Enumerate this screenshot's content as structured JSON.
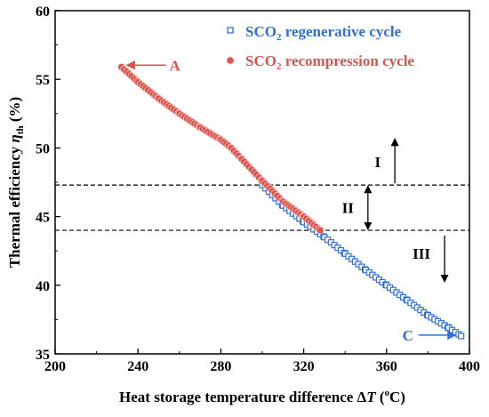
{
  "chart_data": {
    "type": "scatter",
    "xlabel_main": "Heat storage temperature difference Δ",
    "xlabel_var": "T",
    "xlabel_unit_open": " (",
    "xlabel_unit_sup": "o",
    "xlabel_unit_close": "C)",
    "ylabel_main": "Thermal efficiency ",
    "ylabel_var": "η",
    "ylabel_sub": "th",
    "ylabel_unit": " (%)",
    "xlim": [
      200,
      400
    ],
    "ylim": [
      35,
      60
    ],
    "xticks": [
      "200",
      "240",
      "280",
      "320",
      "360",
      "400"
    ],
    "yticks": [
      "35",
      "40",
      "45",
      "50",
      "55",
      "60"
    ],
    "legend_position": "top-right",
    "series": [
      {
        "name": "SCO2 regenerative cycle",
        "name_pre": "SCO",
        "name_sub": "2",
        "name_post": " regenerative cycle",
        "marker": "open-square",
        "color": "#2f6fd6",
        "x": [
          300,
          310,
          320,
          330,
          340,
          350,
          360,
          370,
          380,
          390,
          396
        ],
        "y": [
          47.3,
          45.8,
          44.6,
          43.5,
          42.3,
          41.1,
          40.0,
          38.9,
          37.8,
          36.9,
          36.3
        ]
      },
      {
        "name": "SCO2 recompression cycle",
        "name_pre": "SCO",
        "name_sub": "2",
        "name_post": " recompression cycle",
        "marker": "filled-circle",
        "color": "#d9534f",
        "x": [
          232,
          240,
          250,
          260,
          270,
          280,
          285,
          290,
          300,
          310,
          320,
          328
        ],
        "y": [
          55.9,
          54.8,
          53.6,
          52.5,
          51.5,
          50.6,
          50.0,
          49.2,
          47.6,
          46.1,
          45.0,
          44.0
        ]
      }
    ],
    "threshold_lines": [
      47.3,
      44.0
    ],
    "annotations": {
      "point_A": {
        "label": "A",
        "x": 232,
        "y": 55.9
      },
      "point_C": {
        "label": "C",
        "x": 396,
        "y": 36.3
      },
      "region_I": {
        "label": "I",
        "direction": "up"
      },
      "region_II": {
        "label": "II",
        "direction": "both"
      },
      "region_III": {
        "label": "III",
        "direction": "down"
      }
    }
  }
}
